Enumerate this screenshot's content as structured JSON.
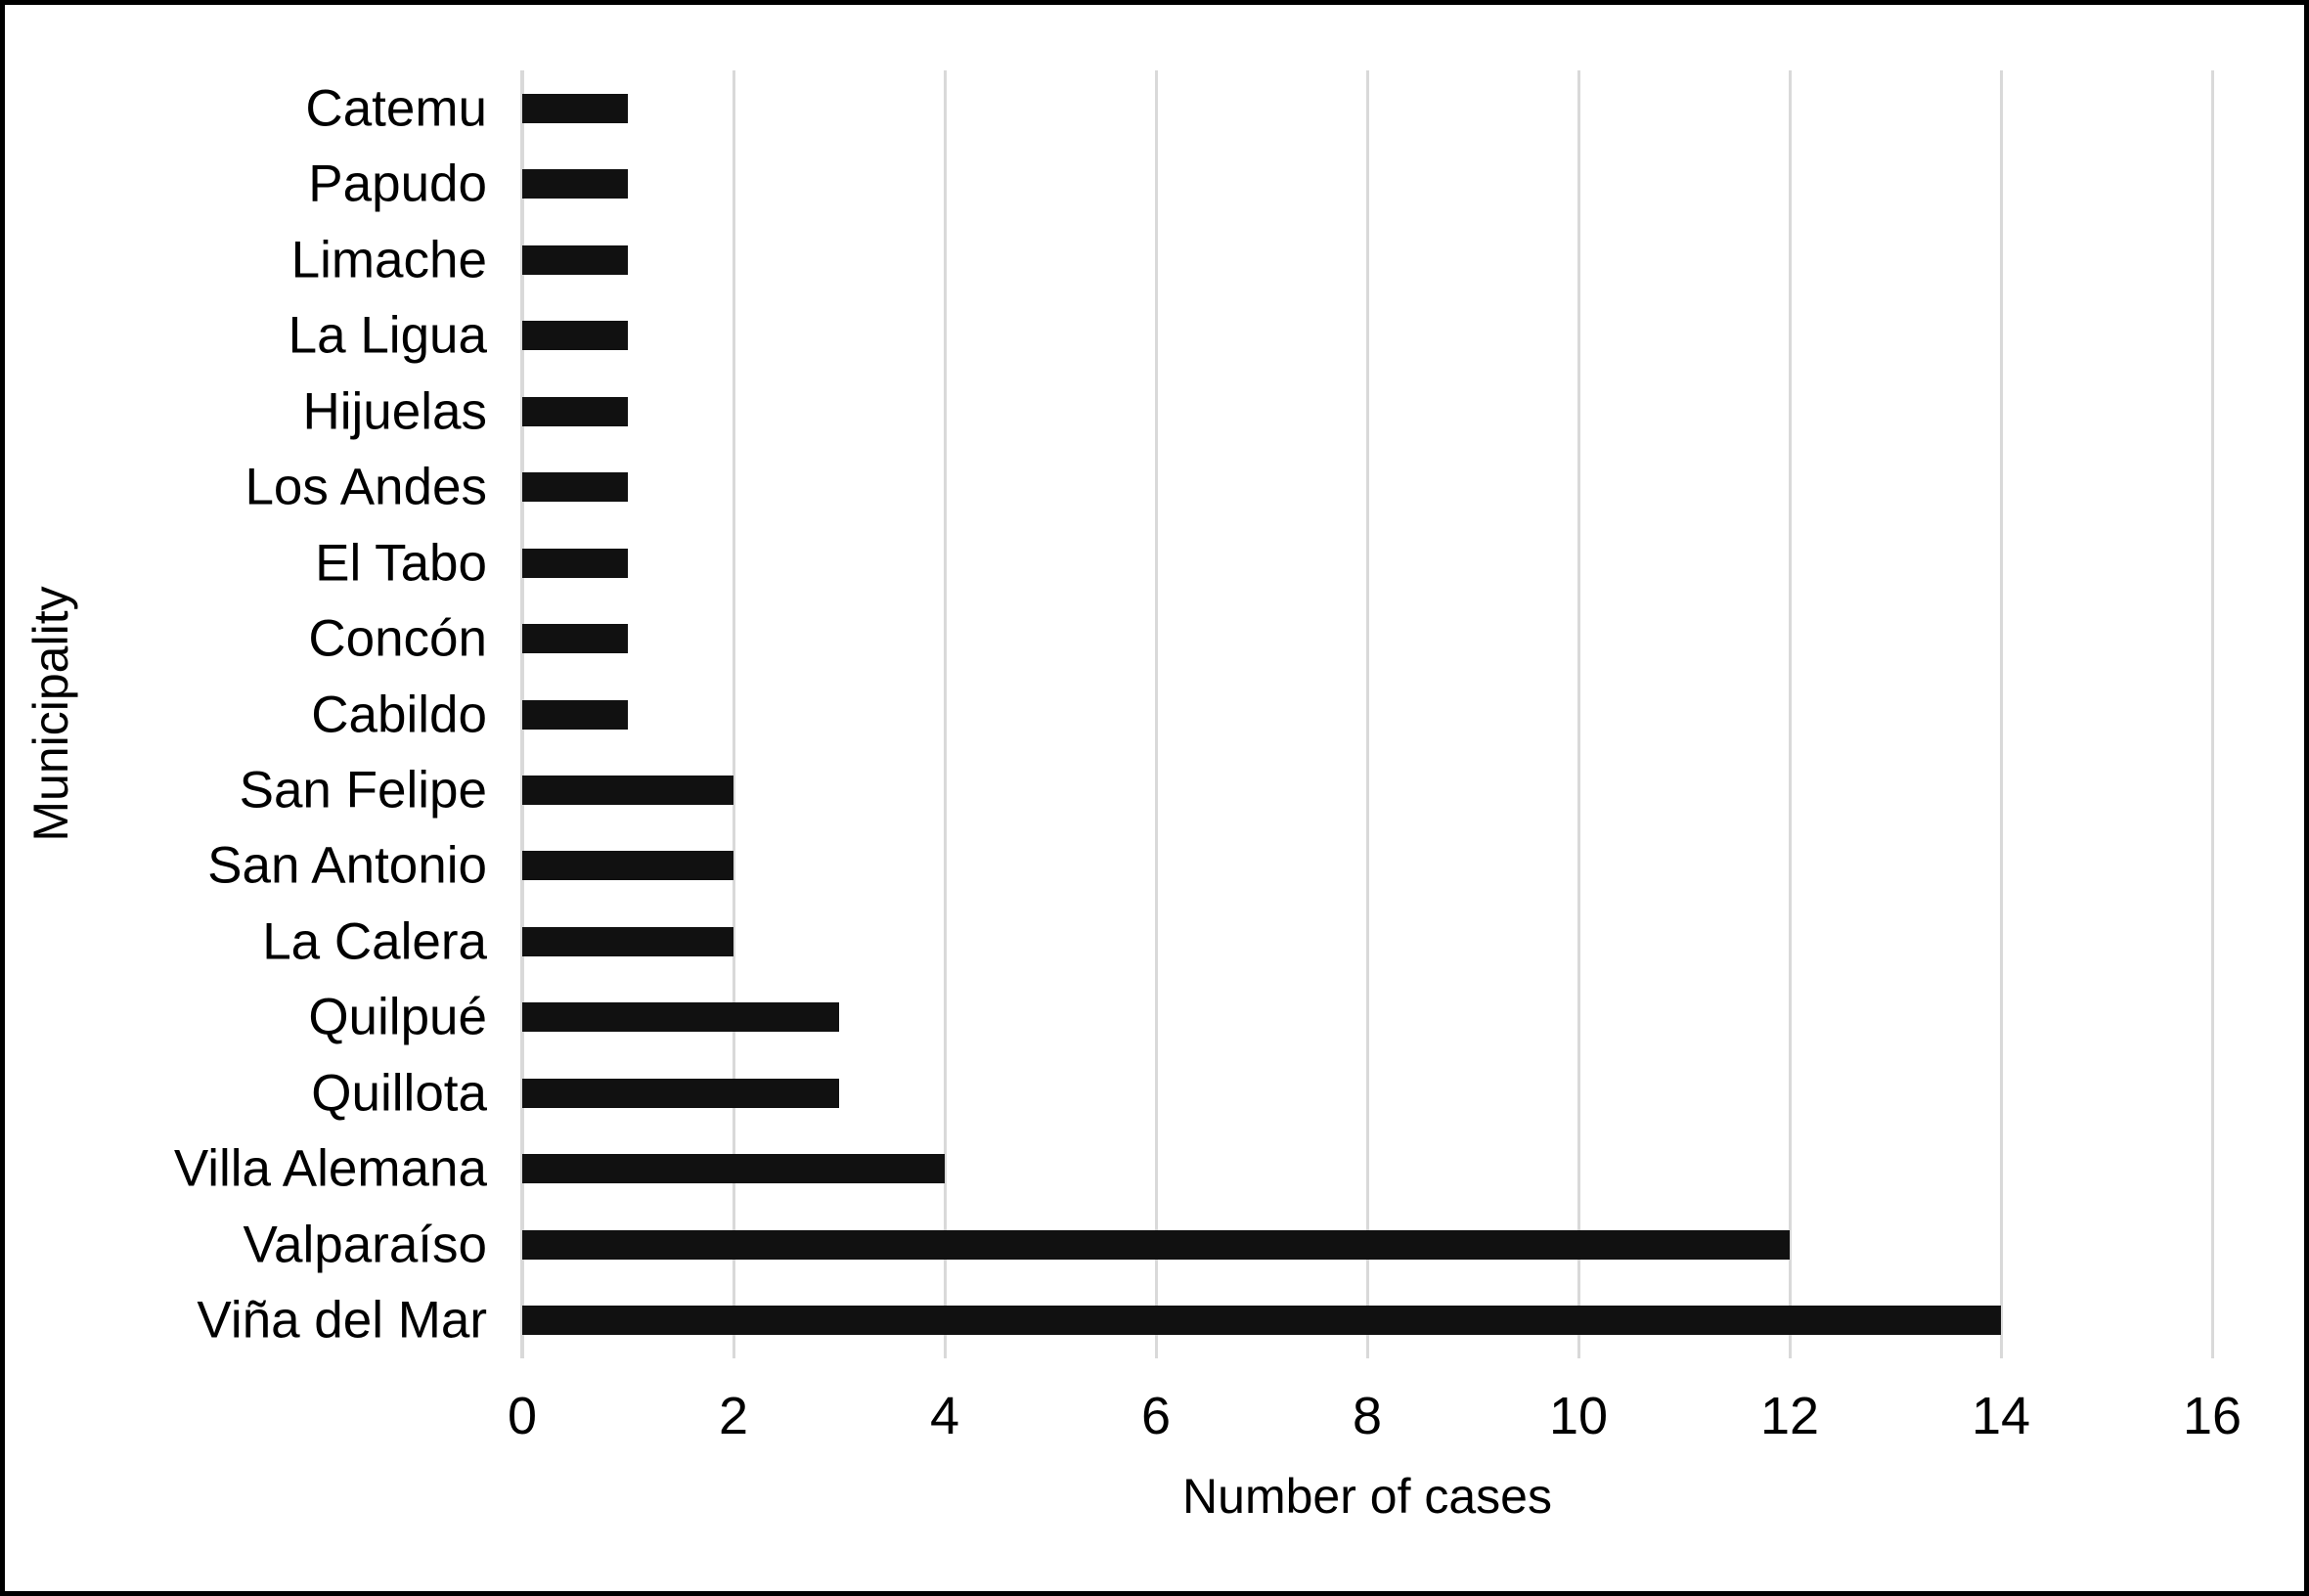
{
  "figure": {
    "background": "#ffffff",
    "border_color": "#000000"
  },
  "chart_data": {
    "type": "bar",
    "orientation": "horizontal",
    "title": "",
    "xlabel": "Number of cases",
    "ylabel": "Municipality",
    "categories": [
      "Catemu",
      "Papudo",
      "Limache",
      "La Ligua",
      "Hijuelas",
      "Los Andes",
      "El Tabo",
      "Concón",
      "Cabildo",
      "San Felipe",
      "San Antonio",
      "La Calera",
      "Quilpué",
      "Quillota",
      "Villa Alemana",
      "Valparaíso",
      "Viña del Mar"
    ],
    "values": [
      1,
      1,
      1,
      1,
      1,
      1,
      1,
      1,
      1,
      2,
      2,
      2,
      3,
      3,
      4,
      12,
      14
    ],
    "xlim": [
      0,
      16
    ],
    "xticks": [
      0,
      2,
      4,
      6,
      8,
      10,
      12,
      14,
      16
    ],
    "grid": "vertical",
    "legend": "none",
    "bar_color": "#111111",
    "gridline_color": "#d9d9d9"
  }
}
